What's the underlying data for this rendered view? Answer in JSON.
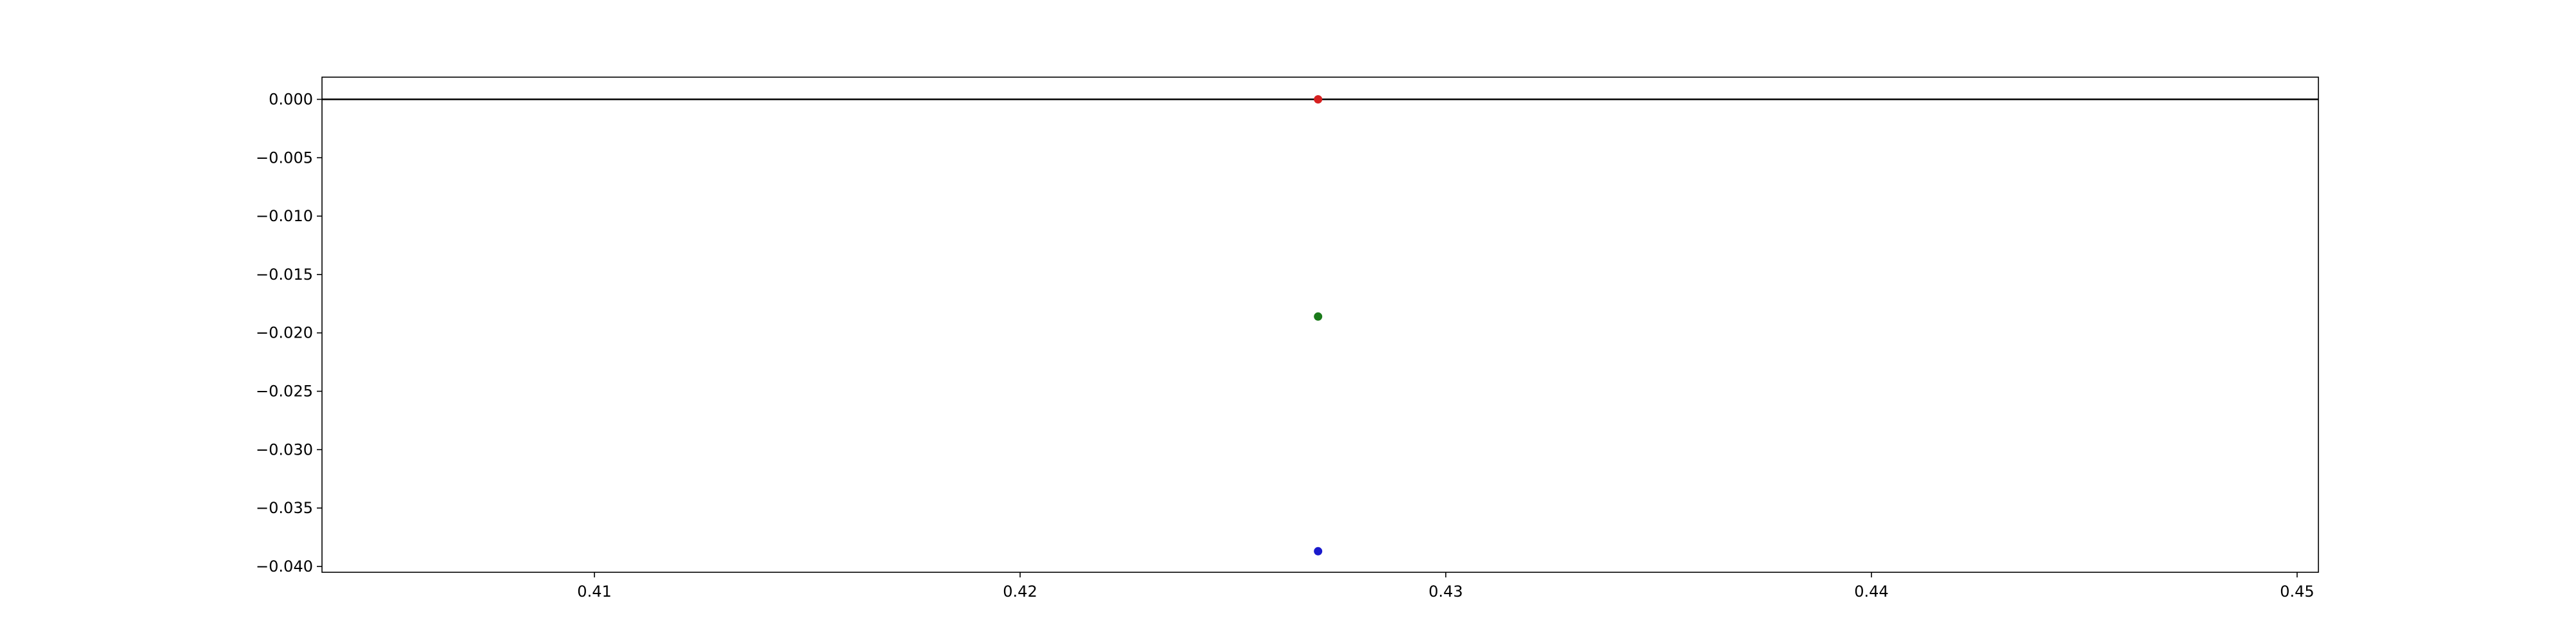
{
  "chart_data": {
    "type": "scatter",
    "title": "",
    "xlabel": "",
    "ylabel": "",
    "xlim": [
      0.4036,
      0.4505
    ],
    "ylim": [
      -0.0405,
      0.0019
    ],
    "x_ticks": [
      0.41,
      0.42,
      0.43,
      0.44,
      0.45
    ],
    "x_tick_labels": [
      "0.41",
      "0.42",
      "0.43",
      "0.44",
      "0.45"
    ],
    "y_ticks": [
      0.0,
      -0.005,
      -0.01,
      -0.015,
      -0.02,
      -0.025,
      -0.03,
      -0.035,
      -0.04
    ],
    "y_tick_labels": [
      "0.000",
      "−0.005",
      "−0.010",
      "−0.015",
      "−0.020",
      "−0.025",
      "−0.030",
      "−0.035",
      "−0.040"
    ],
    "grid": false,
    "reference_lines": [
      {
        "orientation": "horizontal",
        "y": 0.0,
        "color": "#000000"
      }
    ],
    "series": [
      {
        "x": [
          0.427
        ],
        "values": [
          0.0
        ],
        "color": "#d62020"
      },
      {
        "x": [
          0.427
        ],
        "values": [
          -0.0186
        ],
        "color": "#1a7a1a"
      },
      {
        "x": [
          0.427
        ],
        "values": [
          -0.0387
        ],
        "color": "#1a1acc"
      }
    ]
  }
}
